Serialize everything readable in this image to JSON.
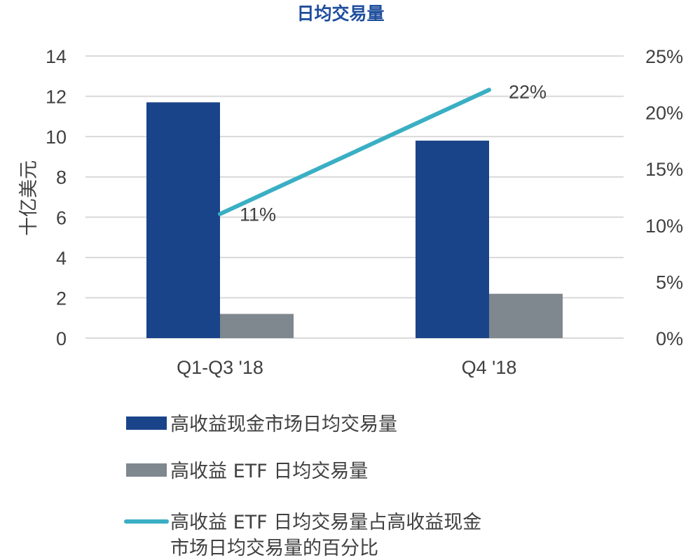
{
  "chart_data": {
    "type": "bar",
    "title": "日均交易量",
    "ylabel": "十亿美元",
    "categories": [
      "Q1-Q3 '18",
      "Q4 '18"
    ],
    "ylim": [
      0,
      14
    ],
    "yticks": [
      "0",
      "2",
      "4",
      "6",
      "8",
      "10",
      "12",
      "14"
    ],
    "y2lim": [
      0,
      25
    ],
    "y2ticks": [
      "0%",
      "5%",
      "10%",
      "15%",
      "20%",
      "25%"
    ],
    "grid": true,
    "legend_position": "bottom",
    "series": [
      {
        "name": "高收益现金市场日均交易量",
        "kind": "bar",
        "axis": "left",
        "color": "#1a4489",
        "values": [
          11.7,
          9.8
        ]
      },
      {
        "name": "高收益 ETF 日均交易量",
        "kind": "bar",
        "axis": "left",
        "color": "#7f878f",
        "values": [
          1.2,
          2.2
        ]
      },
      {
        "name": "高收益 ETF 日均交易量占高收益现金市场日均交易量的百分比",
        "legend_lines": [
          "高收益 ETF 日均交易量占高收益现金",
          "市场日均交易量的百分比"
        ],
        "kind": "line",
        "axis": "right",
        "color": "#3aafc4",
        "values": [
          11,
          22
        ],
        "labels": [
          "11%",
          "22%"
        ]
      }
    ]
  }
}
